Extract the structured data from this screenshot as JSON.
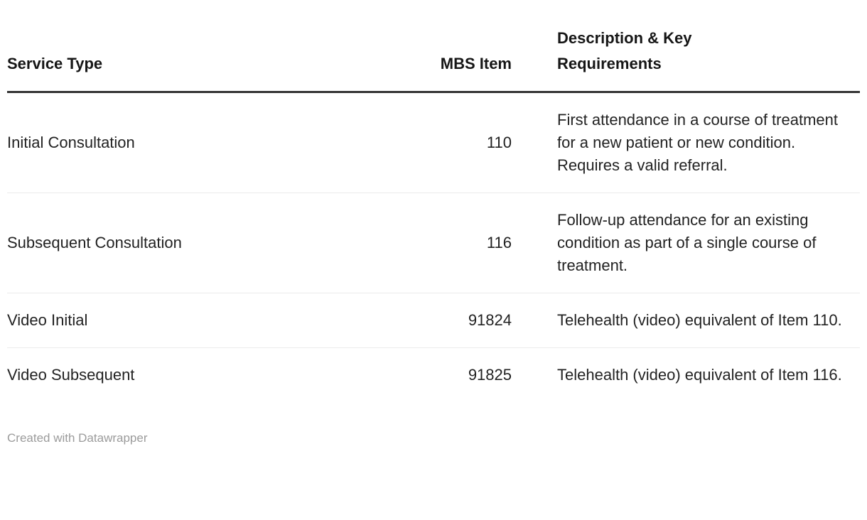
{
  "chart_data": {
    "type": "table",
    "columns": [
      "Service Type",
      "MBS Item",
      "Description & Key Requirements"
    ],
    "rows": [
      [
        "Initial Consultation",
        "110",
        "First attendance in a course of treatment for a new patient or new condition. Requires a valid referral."
      ],
      [
        "Subsequent Consultation",
        "116",
        "Follow-up attendance for an existing condition as part of a single course of treatment."
      ],
      [
        "Video Initial",
        "91824",
        "Telehealth (video) equivalent of Item 110."
      ],
      [
        "Video Subsequent",
        "91825",
        "Telehealth (video) equivalent of Item 116."
      ]
    ],
    "layout_hints": {
      "mbs_item_align": "right",
      "header_rule": "thick-dark",
      "row_dividers": "light-gray"
    }
  },
  "footer": {
    "attribution": "Created with Datawrapper"
  },
  "colors": {
    "background": "#ffffff",
    "header_text": "#161616",
    "body_text": "#222222",
    "header_border": "#333333",
    "row_divider": "#ebebeb",
    "footer_text": "#9b9b9b"
  }
}
